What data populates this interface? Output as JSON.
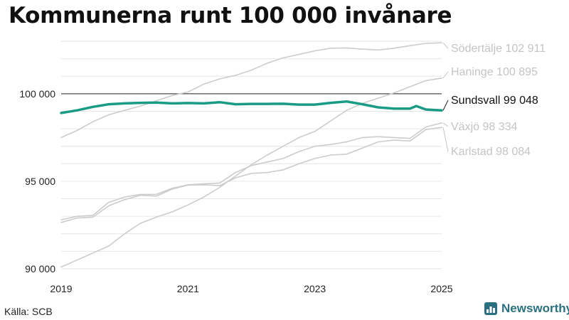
{
  "title": "Kommunerna runt 100 000 invånare",
  "source": "Källa: SCB",
  "brand": {
    "name": "Newsworthy"
  },
  "colors": {
    "highlight": "#1a9b86",
    "muted": "#cccccc",
    "muted_label": "#c4c4c4",
    "reference_line": "#222222",
    "grid": "#e6e6e6",
    "brand": "#2a7080"
  },
  "chart_data": {
    "type": "line",
    "title": "Kommunerna runt 100 000 invånare",
    "xlim": [
      2019,
      2025
    ],
    "ylim": [
      90000,
      103000
    ],
    "x_ticks": [
      2019,
      2021,
      2023,
      2025
    ],
    "x_tick_labels": [
      "2019",
      "2021",
      "2023",
      "2025"
    ],
    "y_ticks": [
      90000,
      95000,
      100000
    ],
    "y_tick_labels": [
      "90 000",
      "95 000",
      "100 000"
    ],
    "reference_line": 100000,
    "grid": true,
    "legend": "direct labels at right end of lines",
    "series": [
      {
        "name": "Södertälje",
        "end_label": "102 911",
        "highlight": false,
        "x": [
          2019,
          2019.25,
          2019.5,
          2019.75,
          2020,
          2020.25,
          2020.5,
          2020.75,
          2021,
          2021.25,
          2021.5,
          2021.75,
          2022,
          2022.25,
          2022.5,
          2022.75,
          2023,
          2023.25,
          2023.5,
          2023.75,
          2024,
          2024.25,
          2024.5,
          2024.75,
          2025
        ],
        "y": [
          97500,
          97900,
          98400,
          98800,
          99050,
          99300,
          99600,
          99900,
          100100,
          100550,
          100850,
          101050,
          101350,
          101750,
          102050,
          102250,
          102450,
          102600,
          102620,
          102550,
          102500,
          102600,
          102750,
          102880,
          102911
        ]
      },
      {
        "name": "Haninge",
        "end_label": "100 895",
        "highlight": false,
        "x": [
          2019,
          2019.25,
          2019.5,
          2019.75,
          2020,
          2020.25,
          2020.5,
          2020.75,
          2021,
          2021.25,
          2021.5,
          2021.75,
          2022,
          2022.25,
          2022.5,
          2022.75,
          2023,
          2023.25,
          2023.5,
          2023.75,
          2024,
          2024.25,
          2024.5,
          2024.75,
          2025
        ],
        "y": [
          90100,
          90500,
          90900,
          91300,
          92000,
          92600,
          92950,
          93250,
          93650,
          94100,
          94650,
          95300,
          95950,
          96500,
          97000,
          97500,
          97850,
          98450,
          99050,
          99450,
          99750,
          100050,
          100400,
          100750,
          100895
        ]
      },
      {
        "name": "Sundsvall",
        "end_label": "99 048",
        "highlight": true,
        "x": [
          2019,
          2019.25,
          2019.5,
          2019.75,
          2020,
          2020.25,
          2020.5,
          2020.75,
          2021,
          2021.25,
          2021.5,
          2021.75,
          2022,
          2022.25,
          2022.5,
          2022.75,
          2023,
          2023.25,
          2023.5,
          2023.75,
          2024,
          2024.25,
          2024.5,
          2024.6,
          2024.75,
          2025
        ],
        "y": [
          98900,
          99050,
          99250,
          99400,
          99450,
          99480,
          99500,
          99450,
          99470,
          99450,
          99520,
          99400,
          99420,
          99420,
          99430,
          99380,
          99380,
          99480,
          99560,
          99400,
          99220,
          99150,
          99150,
          99300,
          99100,
          99048
        ]
      },
      {
        "name": "Växjö",
        "end_label": "98 334",
        "highlight": false,
        "x": [
          2019,
          2019.25,
          2019.5,
          2019.75,
          2020,
          2020.25,
          2020.5,
          2020.75,
          2021,
          2021.25,
          2021.5,
          2021.75,
          2022,
          2022.25,
          2022.5,
          2022.75,
          2023,
          2023.25,
          2023.5,
          2023.75,
          2024,
          2024.25,
          2024.5,
          2024.75,
          2025
        ],
        "y": [
          92800,
          93000,
          93050,
          93800,
          94100,
          94250,
          94250,
          94600,
          94800,
          94850,
          94900,
          95500,
          95900,
          96100,
          96300,
          96700,
          97000,
          97100,
          97250,
          97500,
          97550,
          97500,
          97450,
          98100,
          98334
        ]
      },
      {
        "name": "Karlstad",
        "end_label": "98 084",
        "highlight": false,
        "x": [
          2019,
          2019.25,
          2019.5,
          2019.75,
          2020,
          2020.25,
          2020.5,
          2020.75,
          2021,
          2021.25,
          2021.5,
          2021.75,
          2022,
          2022.25,
          2022.5,
          2022.75,
          2023,
          2023.25,
          2023.5,
          2023.75,
          2024,
          2024.25,
          2024.5,
          2024.75,
          2025
        ],
        "y": [
          92650,
          92900,
          92950,
          93600,
          93950,
          94200,
          94150,
          94550,
          94780,
          94800,
          94750,
          95200,
          95450,
          95500,
          95650,
          96000,
          96300,
          96500,
          96550,
          96900,
          97250,
          97350,
          97300,
          97950,
          98084
        ]
      }
    ]
  }
}
